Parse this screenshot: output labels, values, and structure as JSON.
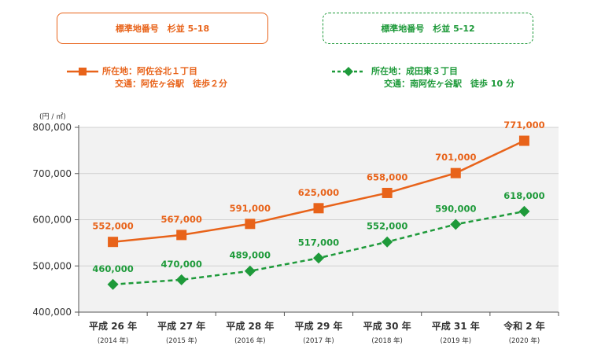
{
  "boxes": [
    {
      "label": "標準地番号　杉並 5-18",
      "color": "#e8631a"
    },
    {
      "label": "標準地番号　杉並 5-12",
      "color": "#1e9a3a"
    }
  ],
  "legend": [
    {
      "line1": "所在地：阿佐谷北１丁目",
      "line2": "交通：阿佐ヶ谷駅　徒歩２分"
    },
    {
      "line1": "所在地：成田東３丁目",
      "line2": "交通：南阿佐ヶ谷駅　徒歩 10 分"
    }
  ],
  "chart_data": {
    "type": "line",
    "unit_label": "(円 / ㎡)",
    "categories": [
      "平成 26 年",
      "平成 27 年",
      "平成 28 年",
      "平成 29 年",
      "平成 30 年",
      "平成 31 年",
      "令和 2 年"
    ],
    "sub_categories": [
      "(2014 年)",
      "(2015 年)",
      "(2016 年)",
      "(2017 年)",
      "(2018 年)",
      "(2019 年)",
      "(2020 年)"
    ],
    "ylim": [
      400000,
      800000
    ],
    "yticks": [
      400000,
      500000,
      600000,
      700000,
      800000
    ],
    "ytick_labels": [
      "400,000",
      "500,000",
      "600,000",
      "700,000",
      "800,000"
    ],
    "series": [
      {
        "values": [
          552000,
          567000,
          591000,
          625000,
          658000,
          701000,
          771000
        ],
        "labels": [
          "552,000",
          "567,000",
          "591,000",
          "625,000",
          "658,000",
          "701,000",
          "771,000"
        ],
        "color": "#e8631a",
        "marker": "square",
        "line": "solid"
      },
      {
        "values": [
          460000,
          470000,
          489000,
          517000,
          552000,
          590000,
          618000
        ],
        "labels": [
          "460,000",
          "470,000",
          "489,000",
          "517,000",
          "552,000",
          "590,000",
          "618,000"
        ],
        "color": "#1e9a3a",
        "marker": "diamond",
        "line": "dashed"
      }
    ]
  }
}
